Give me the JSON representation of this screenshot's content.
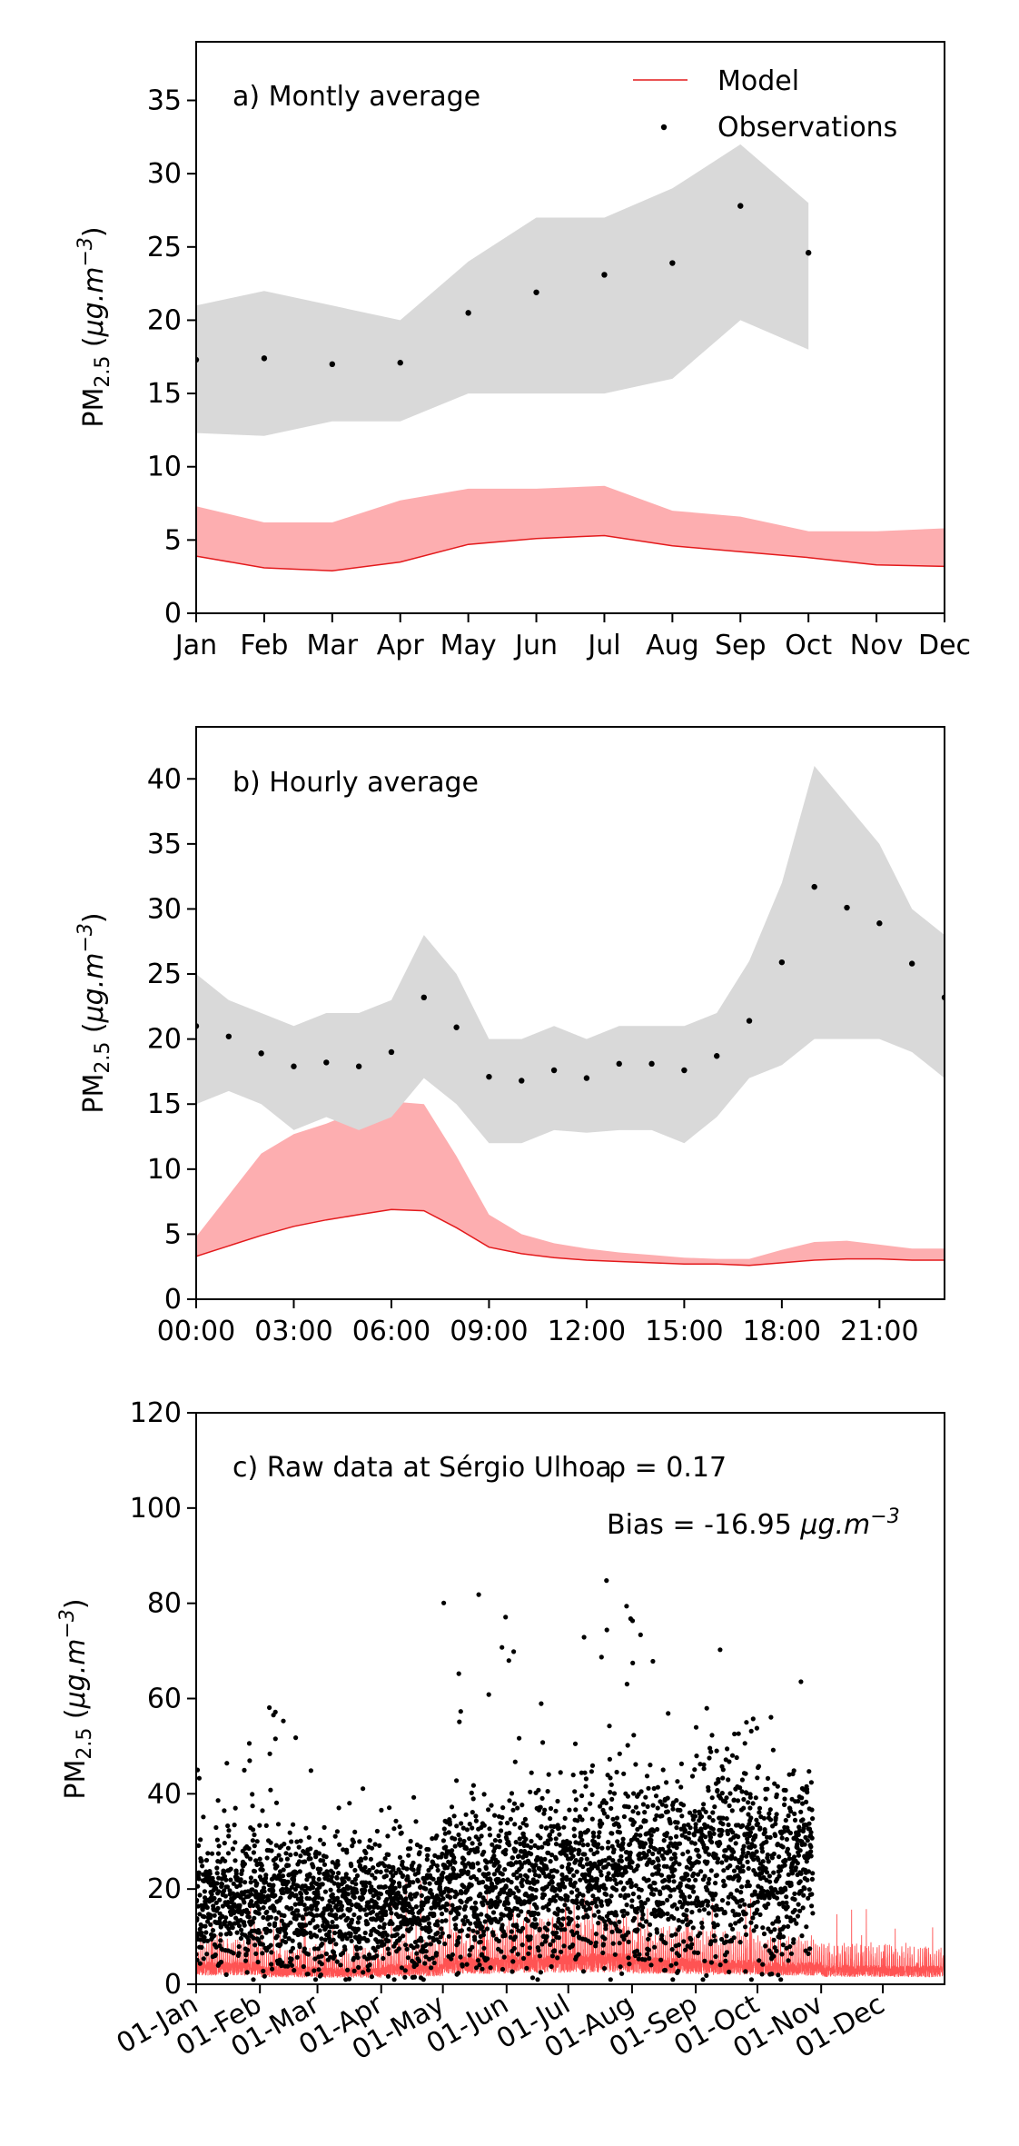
{
  "chart_data": [
    {
      "type": "line",
      "panel": "a",
      "annotation": "a) Montly average",
      "ylabel": "PM2.5 (μg.m−3)",
      "ylim": [
        0,
        39
      ],
      "yticks": [
        0,
        5,
        10,
        15,
        20,
        25,
        30,
        35
      ],
      "categories": [
        "Jan",
        "Feb",
        "Mar",
        "Apr",
        "May",
        "Jun",
        "Jul",
        "Aug",
        "Sep",
        "Oct",
        "Nov",
        "Dec"
      ],
      "legend": {
        "position": "top-right",
        "entries": [
          "Model",
          "Observations"
        ]
      },
      "series": [
        {
          "name": "Model",
          "kind": "line",
          "color": "#e31a1c",
          "values": [
            3.9,
            3.1,
            2.9,
            3.5,
            4.7,
            5.1,
            5.3,
            4.6,
            4.2,
            3.8,
            3.3,
            3.2
          ]
        },
        {
          "name": "Observations",
          "kind": "points",
          "color": "#000000",
          "values": [
            17.3,
            17.4,
            17.0,
            17.1,
            20.5,
            21.9,
            23.1,
            23.9,
            27.8,
            24.6,
            null,
            null
          ]
        }
      ],
      "bands": [
        {
          "for": "Model",
          "color": "#fdaeb0",
          "lower": [
            3.9,
            3.1,
            2.9,
            3.5,
            4.7,
            5.1,
            5.3,
            4.6,
            4.2,
            3.8,
            3.3,
            3.2
          ],
          "upper": [
            7.3,
            6.2,
            6.2,
            7.7,
            8.5,
            8.5,
            8.7,
            7.0,
            6.6,
            5.6,
            5.6,
            5.8
          ]
        },
        {
          "for": "Observations",
          "color": "#d9d9d9",
          "lower": [
            12.3,
            12.1,
            13.1,
            13.1,
            15.0,
            15.0,
            15.0,
            16.0,
            20.0,
            18.0,
            null,
            null
          ],
          "upper": [
            21.0,
            22.0,
            21.0,
            20.0,
            24.0,
            27.0,
            27.0,
            29.0,
            32.0,
            28.0,
            null,
            null
          ]
        }
      ]
    },
    {
      "type": "line",
      "panel": "b",
      "annotation": "b) Hourly average",
      "ylabel": "PM2.5 (μg.m−3)",
      "ylim": [
        0,
        44
      ],
      "yticks": [
        0,
        5,
        10,
        15,
        20,
        25,
        30,
        35,
        40
      ],
      "xlim": [
        0,
        23
      ],
      "xticks": [
        0,
        3,
        6,
        9,
        12,
        15,
        18,
        21
      ],
      "xticklabels": [
        "00:00",
        "03:00",
        "06:00",
        "09:00",
        "12:00",
        "15:00",
        "18:00",
        "21:00"
      ],
      "x": [
        0,
        1,
        2,
        3,
        4,
        5,
        6,
        7,
        8,
        9,
        10,
        11,
        12,
        13,
        14,
        15,
        16,
        17,
        18,
        19,
        20,
        21,
        22,
        23
      ],
      "series": [
        {
          "name": "Model",
          "kind": "line",
          "color": "#e31a1c",
          "values": [
            3.3,
            4.1,
            4.9,
            5.6,
            6.1,
            6.5,
            6.9,
            6.8,
            5.5,
            4.0,
            3.5,
            3.2,
            3.0,
            2.9,
            2.8,
            2.7,
            2.7,
            2.6,
            2.8,
            3.0,
            3.1,
            3.1,
            3.0,
            3.0
          ]
        },
        {
          "name": "Observations",
          "kind": "points",
          "color": "#000000",
          "values": [
            21.0,
            20.2,
            18.9,
            17.9,
            18.2,
            17.9,
            19.0,
            23.2,
            20.9,
            17.1,
            16.8,
            17.6,
            17.0,
            18.1,
            18.1,
            17.6,
            18.7,
            21.4,
            25.9,
            31.7,
            30.1,
            28.9,
            25.8,
            23.2
          ]
        }
      ],
      "bands": [
        {
          "for": "Model",
          "color": "#fdaeb0",
          "lower": [
            3.3,
            4.1,
            4.9,
            5.6,
            6.1,
            6.5,
            6.9,
            6.8,
            5.5,
            4.0,
            3.5,
            3.2,
            3.0,
            2.9,
            2.8,
            2.7,
            2.7,
            2.6,
            2.8,
            3.0,
            3.1,
            3.1,
            3.0,
            3.0
          ],
          "upper": [
            4.8,
            8.0,
            11.2,
            12.7,
            13.5,
            14.5,
            15.2,
            15.0,
            11.0,
            6.5,
            5.0,
            4.3,
            3.9,
            3.6,
            3.4,
            3.2,
            3.1,
            3.1,
            3.8,
            4.4,
            4.5,
            4.2,
            3.9,
            3.9
          ]
        },
        {
          "for": "Observations",
          "color": "#d9d9d9",
          "lower": [
            15.0,
            16.0,
            15.0,
            13.0,
            14.0,
            13.0,
            14.0,
            17.0,
            15.0,
            12.0,
            12.0,
            13.0,
            12.8,
            13.0,
            13.0,
            12.0,
            14.0,
            17.0,
            18.0,
            20.0,
            20.0,
            20.0,
            19.0,
            17.0
          ],
          "upper": [
            25.0,
            23.0,
            22.0,
            21.0,
            22.0,
            22.0,
            23.0,
            28.0,
            25.0,
            20.0,
            20.0,
            21.0,
            20.0,
            21.0,
            21.0,
            21.0,
            22.0,
            26.0,
            32.0,
            41.0,
            38.0,
            35.0,
            30.0,
            28.0
          ]
        }
      ]
    },
    {
      "type": "scatter",
      "panel": "c",
      "annotation": "c) Raw data at Sérgio Ulhoa",
      "stats": {
        "rho": "ρ = 0.17",
        "bias": "Bias = -16.95 μg.m−3"
      },
      "ylabel": "PM2.5 (μg.m−3)",
      "ylim": [
        0,
        120
      ],
      "yticks": [
        0,
        20,
        40,
        60,
        80,
        100,
        120
      ],
      "xlim": [
        "2019-01-01",
        "2019-12-31"
      ],
      "xticklabels": [
        "01-Jan",
        "01-Feb",
        "01-Mar",
        "01-Apr",
        "01-May",
        "01-Jun",
        "01-Jul",
        "01-Aug",
        "01-Sep",
        "01-Oct",
        "01-Nov",
        "01-Dec"
      ],
      "monthly_summary": {
        "months": [
          "Jan",
          "Feb",
          "Mar",
          "Apr",
          "May",
          "Jun",
          "Jul",
          "Aug",
          "Sep",
          "Oct",
          "Nov",
          "Dec"
        ],
        "obs_mean": [
          17.3,
          17.4,
          17.0,
          17.1,
          20.5,
          21.9,
          23.1,
          23.9,
          27.8,
          24.6,
          null,
          null
        ],
        "obs_max": [
          51,
          62,
          43,
          42,
          83,
          71,
          86,
          84,
          78,
          65,
          null,
          null
        ],
        "model_mean": [
          3.9,
          3.1,
          2.9,
          3.5,
          4.7,
          5.1,
          5.3,
          4.6,
          4.2,
          3.8,
          3.3,
          3.2
        ],
        "model_max": [
          18,
          17,
          14,
          22,
          21,
          19,
          20,
          19,
          19,
          14,
          16,
          12
        ]
      },
      "observations_end": "2019-10-28",
      "series": [
        {
          "name": "Model",
          "kind": "line",
          "color": "#ff1a1a"
        },
        {
          "name": "Observations",
          "kind": "points",
          "color": "#000000"
        }
      ]
    }
  ]
}
